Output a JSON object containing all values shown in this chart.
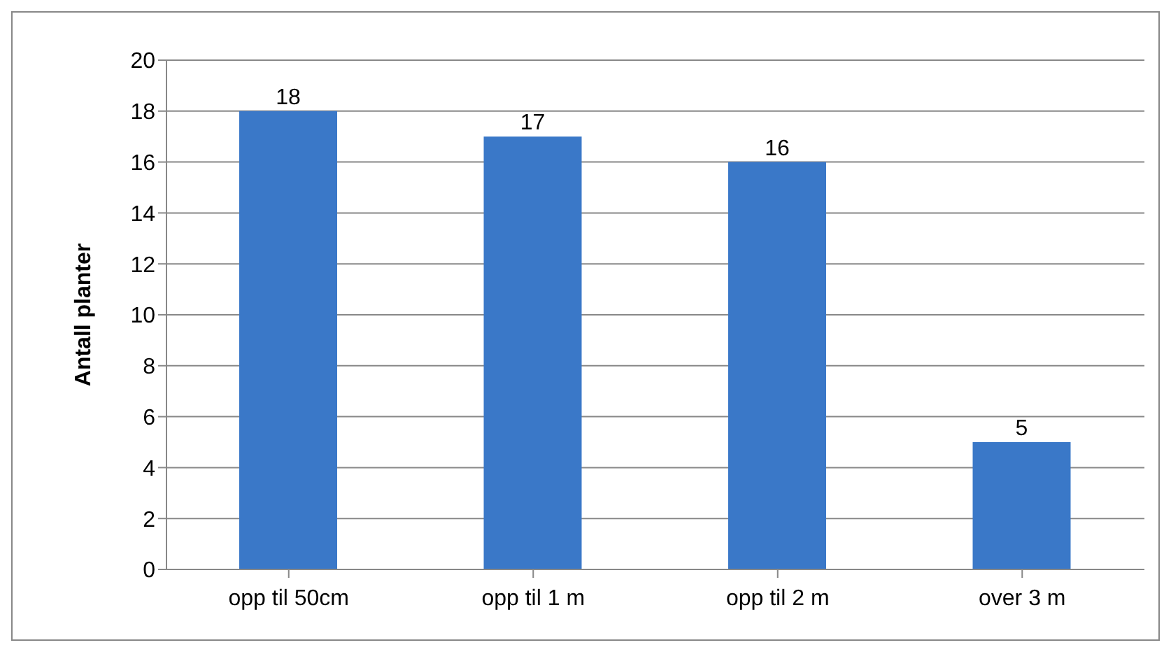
{
  "chart_data": {
    "type": "bar",
    "ylabel": "Antall planter",
    "categories": [
      "opp til 50cm",
      "opp til 1 m",
      "opp til 2 m",
      "over 3 m"
    ],
    "values": [
      18,
      17,
      16,
      5
    ],
    "color": "#3a78c8",
    "ylim": [
      0,
      20
    ],
    "yticks": [
      0,
      2,
      4,
      6,
      8,
      10,
      12,
      14,
      16,
      18,
      20
    ],
    "grid": "y",
    "data_labels": true
  }
}
